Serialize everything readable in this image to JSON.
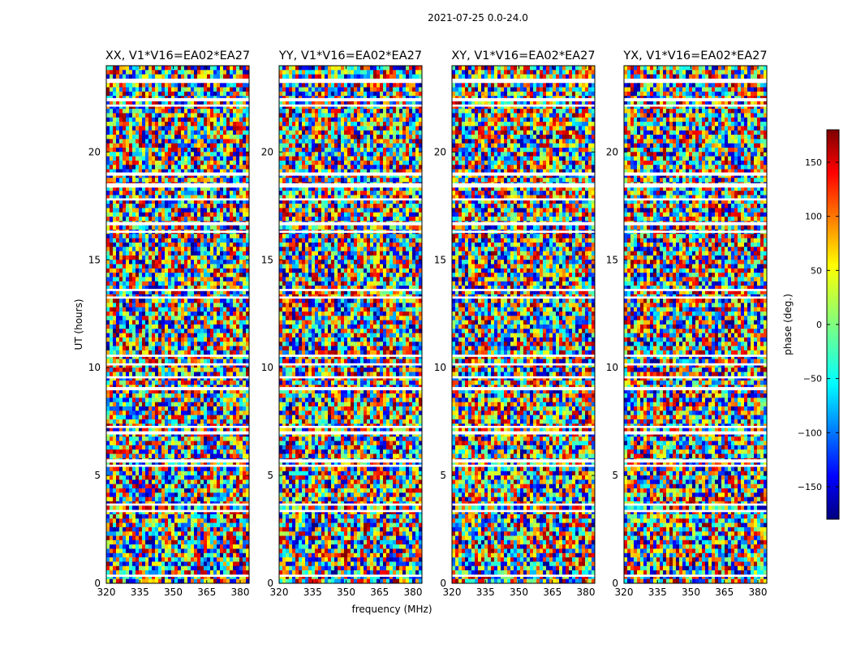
{
  "chart_data": {
    "type": "heatmap",
    "suptitle": "2021-07-25 0.0-24.0",
    "xlabel": "frequency (MHz)",
    "ylabel": "UT (hours)",
    "xlim": [
      320,
      384
    ],
    "ylim": [
      0,
      24
    ],
    "xticks": [
      320,
      335,
      350,
      365,
      380
    ],
    "yticks": [
      0,
      5,
      10,
      15,
      20
    ],
    "panels": [
      {
        "title": "XX, V1*V16=EA02*EA27"
      },
      {
        "title": "YY, V1*V16=EA02*EA27"
      },
      {
        "title": "XY, V1*V16=EA02*EA27"
      },
      {
        "title": "YX, V1*V16=EA02*EA27"
      }
    ],
    "colorbar": {
      "label": "phase (deg.)",
      "range": [
        -180,
        180
      ],
      "ticks": [
        150,
        100,
        50,
        0,
        -50,
        -100,
        -150
      ],
      "tick_labels": [
        "150",
        "100",
        "50",
        "0",
        "−50",
        "−100",
        "−150"
      ],
      "colormap": "jet"
    },
    "flagged_ut_gaps": [
      [
        23.2,
        23.4
      ],
      [
        22.35,
        22.5
      ],
      [
        22.1,
        22.2
      ],
      [
        18.9,
        19.05
      ],
      [
        18.35,
        18.55
      ],
      [
        17.75,
        17.85
      ],
      [
        16.6,
        16.75
      ],
      [
        16.25,
        16.35
      ],
      [
        13.55,
        13.65
      ],
      [
        13.2,
        13.3
      ],
      [
        10.5,
        10.6
      ],
      [
        10.1,
        10.2
      ],
      [
        9.5,
        9.6
      ],
      [
        8.95,
        9.1
      ],
      [
        7.2,
        7.3
      ],
      [
        6.9,
        7.05
      ],
      [
        5.6,
        5.75
      ],
      [
        5.4,
        5.5
      ],
      [
        3.6,
        3.7
      ],
      [
        3.3,
        3.4
      ],
      [
        0.3,
        0.4
      ]
    ]
  }
}
